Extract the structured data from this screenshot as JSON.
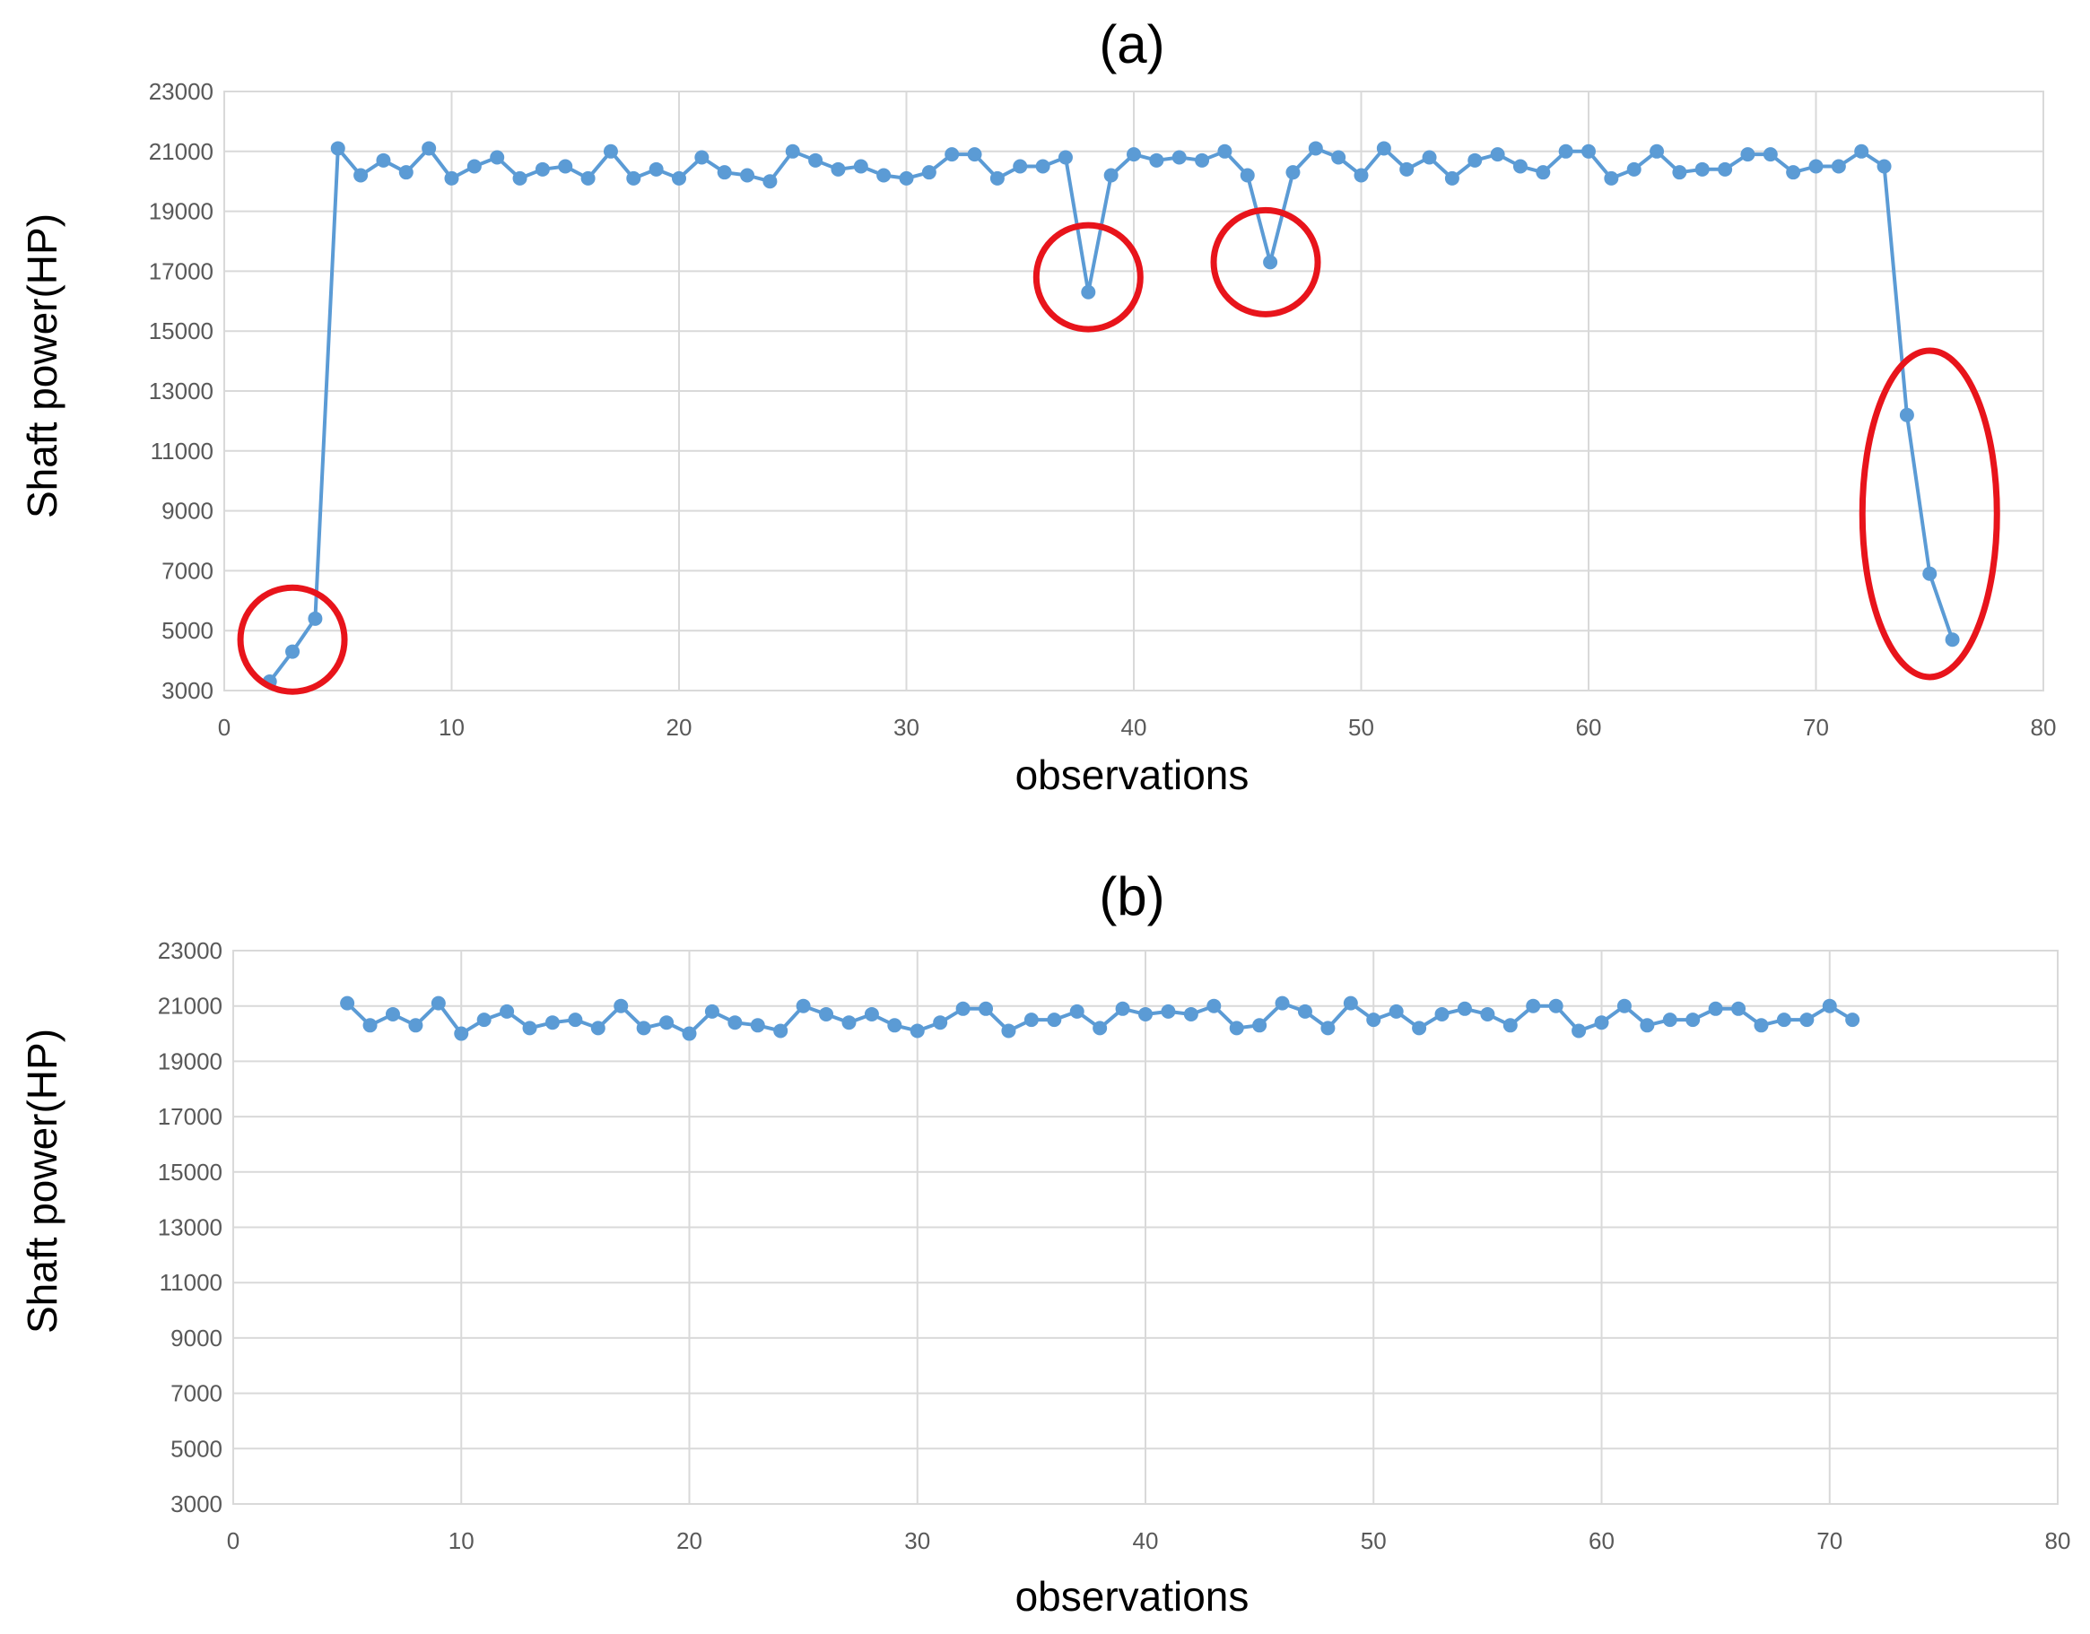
{
  "chart_data": [
    {
      "type": "line",
      "title": "(a)",
      "xlabel": "observations",
      "ylabel": "Shaft power(HP)",
      "xlim": [
        0,
        80
      ],
      "ylim": [
        3000,
        23000
      ],
      "xticks": [
        0,
        10,
        20,
        30,
        40,
        50,
        60,
        70,
        80
      ],
      "yticks": [
        3000,
        5000,
        7000,
        9000,
        11000,
        13000,
        15000,
        17000,
        19000,
        21000,
        23000
      ],
      "tick_labels_y": [
        "3000",
        "5000",
        "7000",
        "9000",
        "11000",
        "13000",
        "15000",
        "17000",
        "19000",
        "21000",
        "23000"
      ],
      "tick_labels_x": [
        "0",
        "10",
        "20",
        "30",
        "40",
        "50",
        "60",
        "70",
        "80"
      ],
      "grid": true,
      "color": "#5b9bd5",
      "annotation_color": "#e8141b",
      "series": [
        {
          "x": [
            2,
            3,
            4,
            5,
            6,
            7,
            8,
            9,
            10,
            11,
            12,
            13,
            14,
            15,
            16,
            17,
            18,
            19,
            20,
            21,
            22,
            23,
            24,
            25,
            26,
            27,
            28,
            29,
            30,
            31,
            32,
            33,
            34,
            35,
            36,
            37,
            38,
            39,
            40,
            41,
            42,
            43,
            44,
            45,
            46,
            47,
            48,
            49,
            50,
            51,
            52,
            53,
            54,
            55,
            56,
            57,
            58,
            59,
            60,
            61,
            62,
            63,
            64,
            65,
            66,
            67,
            68,
            69,
            70,
            71,
            72,
            73,
            74,
            75,
            76
          ],
          "values": [
            3300,
            4300,
            5400,
            21100,
            20200,
            20700,
            20300,
            21100,
            20100,
            20500,
            20800,
            20100,
            20400,
            20500,
            20100,
            21000,
            20100,
            20400,
            20100,
            20800,
            20300,
            20200,
            20000,
            21000,
            20700,
            20400,
            20500,
            20200,
            20100,
            20300,
            20900,
            20900,
            20100,
            20500,
            20500,
            20800,
            16300,
            20200,
            20900,
            20700,
            20800,
            20700,
            21000,
            20200,
            17300,
            20300,
            21100,
            20800,
            20200,
            21100,
            20400,
            20800,
            20100,
            20700,
            20900,
            20500,
            20300,
            21000,
            21000,
            20100,
            20400,
            21000,
            20300,
            20400,
            20400,
            20900,
            20900,
            20300,
            20500,
            20500,
            21000,
            20500,
            12200,
            6900,
            4700
          ]
        }
      ],
      "annotations": [
        {
          "shape": "circle",
          "x": 3,
          "y": 4700
        },
        {
          "shape": "circle",
          "x": 38,
          "y": 16800
        },
        {
          "shape": "circle",
          "x": 45.8,
          "y": 17300
        },
        {
          "shape": "ellipse",
          "x": 75,
          "y": 8900
        }
      ]
    },
    {
      "type": "line",
      "title": "(b)",
      "xlabel": "observations",
      "ylabel": "Shaft power(HP)",
      "xlim": [
        0,
        80
      ],
      "ylim": [
        3000,
        23000
      ],
      "xticks": [
        0,
        10,
        20,
        30,
        40,
        50,
        60,
        70,
        80
      ],
      "yticks": [
        3000,
        5000,
        7000,
        9000,
        11000,
        13000,
        15000,
        17000,
        19000,
        21000,
        23000
      ],
      "tick_labels_y": [
        "3000",
        "5000",
        "7000",
        "9000",
        "11000",
        "13000",
        "15000",
        "17000",
        "19000",
        "21000",
        "23000"
      ],
      "tick_labels_x": [
        "0",
        "10",
        "20",
        "30",
        "40",
        "50",
        "60",
        "70",
        "80"
      ],
      "grid": true,
      "color": "#5b9bd5",
      "series": [
        {
          "x": [
            5,
            6,
            7,
            8,
            9,
            10,
            11,
            12,
            13,
            14,
            15,
            16,
            17,
            18,
            19,
            20,
            21,
            22,
            23,
            24,
            25,
            26,
            27,
            28,
            29,
            30,
            31,
            32,
            33,
            34,
            35,
            36,
            37,
            38,
            39,
            40,
            41,
            42,
            43,
            44,
            45,
            46,
            47,
            48,
            49,
            50,
            51,
            52,
            53,
            54,
            55,
            56,
            57,
            58,
            59,
            60,
            61,
            62,
            63,
            64,
            65,
            66,
            67,
            68,
            69,
            70,
            71
          ],
          "values": [
            21100,
            20300,
            20700,
            20300,
            21100,
            20000,
            20500,
            20800,
            20200,
            20400,
            20500,
            20200,
            21000,
            20200,
            20400,
            20000,
            20800,
            20400,
            20300,
            20100,
            21000,
            20700,
            20400,
            20700,
            20300,
            20100,
            20400,
            20900,
            20900,
            20100,
            20500,
            20500,
            20800,
            20200,
            20900,
            20700,
            20800,
            20700,
            21000,
            20200,
            20300,
            21100,
            20800,
            20200,
            21100,
            20500,
            20800,
            20200,
            20700,
            20900,
            20700,
            20300,
            21000,
            21000,
            20100,
            20400,
            21000,
            20300,
            20500,
            20500,
            20900,
            20900,
            20300,
            20500,
            20500,
            21000,
            20500
          ]
        }
      ]
    }
  ]
}
